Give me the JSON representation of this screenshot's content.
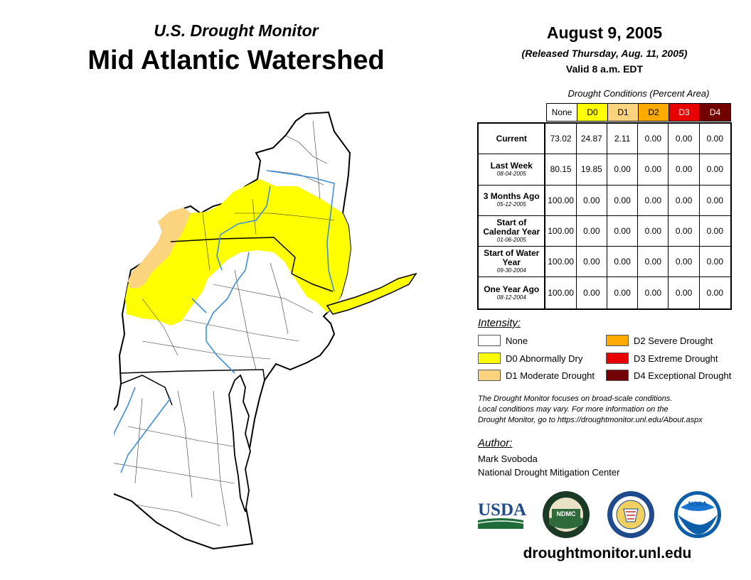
{
  "header": {
    "subtitle": "U.S. Drought Monitor",
    "title": "Mid Atlantic Watershed"
  },
  "release": {
    "date": "August 9, 2005",
    "released": "(Released Thursday, Aug. 11, 2005)",
    "valid": "Valid 8 a.m. EDT"
  },
  "table": {
    "caption": "Drought Conditions (Percent Area)",
    "columns": [
      {
        "label": "None",
        "color": "#ffffff",
        "text_color": "#000000"
      },
      {
        "label": "D0",
        "color": "#ffff00",
        "text_color": "#000000"
      },
      {
        "label": "D1",
        "color": "#fcd37f",
        "text_color": "#000000"
      },
      {
        "label": "D2",
        "color": "#ffaa00",
        "text_color": "#000000"
      },
      {
        "label": "D3",
        "color": "#e60000",
        "text_color": "#ffffff"
      },
      {
        "label": "D4",
        "color": "#730000",
        "text_color": "#ffffff"
      }
    ],
    "rows": [
      {
        "label": "Current",
        "date": "",
        "values": [
          "73.02",
          "24.87",
          "2.11",
          "0.00",
          "0.00",
          "0.00"
        ]
      },
      {
        "label": "Last Week",
        "date": "08-04-2005",
        "values": [
          "80.15",
          "19.85",
          "0.00",
          "0.00",
          "0.00",
          "0.00"
        ]
      },
      {
        "label": "3 Months Ago",
        "date": "05-12-2005",
        "values": [
          "100.00",
          "0.00",
          "0.00",
          "0.00",
          "0.00",
          "0.00"
        ]
      },
      {
        "label": "Start of Calendar Year",
        "date": "01-06-2005",
        "values": [
          "100.00",
          "0.00",
          "0.00",
          "0.00",
          "0.00",
          "0.00"
        ]
      },
      {
        "label": "Start of Water Year",
        "date": "09-30-2004",
        "values": [
          "100.00",
          "0.00",
          "0.00",
          "0.00",
          "0.00",
          "0.00"
        ]
      },
      {
        "label": "One Year Ago",
        "date": "08-12-2004",
        "values": [
          "100.00",
          "0.00",
          "0.00",
          "0.00",
          "0.00",
          "0.00"
        ]
      }
    ]
  },
  "legend": {
    "title": "Intensity:",
    "items": [
      {
        "label": "None",
        "color": "#ffffff"
      },
      {
        "label": "D0 Abnormally Dry",
        "color": "#ffff00"
      },
      {
        "label": "D1 Moderate Drought",
        "color": "#fcd37f"
      },
      {
        "label": "D2 Severe Drought",
        "color": "#ffaa00"
      },
      {
        "label": "D3 Extreme Drought",
        "color": "#e60000"
      },
      {
        "label": "D4 Exceptional Drought",
        "color": "#730000"
      }
    ]
  },
  "note": {
    "lines": [
      "The Drought Monitor focuses on broad-scale conditions.",
      "Local conditions may vary. For more information on the",
      "Drought Monitor, go to https://droughtmonitor.unl.edu/About.aspx"
    ]
  },
  "author": {
    "label": "Author:",
    "name": "Mark Svoboda",
    "org": "National Drought Mitigation Center"
  },
  "logos": {
    "usda": "USDA",
    "ndmc": "NDMC",
    "noaa": "NOAA"
  },
  "footer": {
    "url": "droughtmonitor.unl.edu"
  },
  "map": {
    "colors": {
      "none": "#ffffff",
      "d0": "#ffff00",
      "d1": "#fcd37f",
      "water": "#3d8fd9",
      "border": "#000000"
    }
  }
}
